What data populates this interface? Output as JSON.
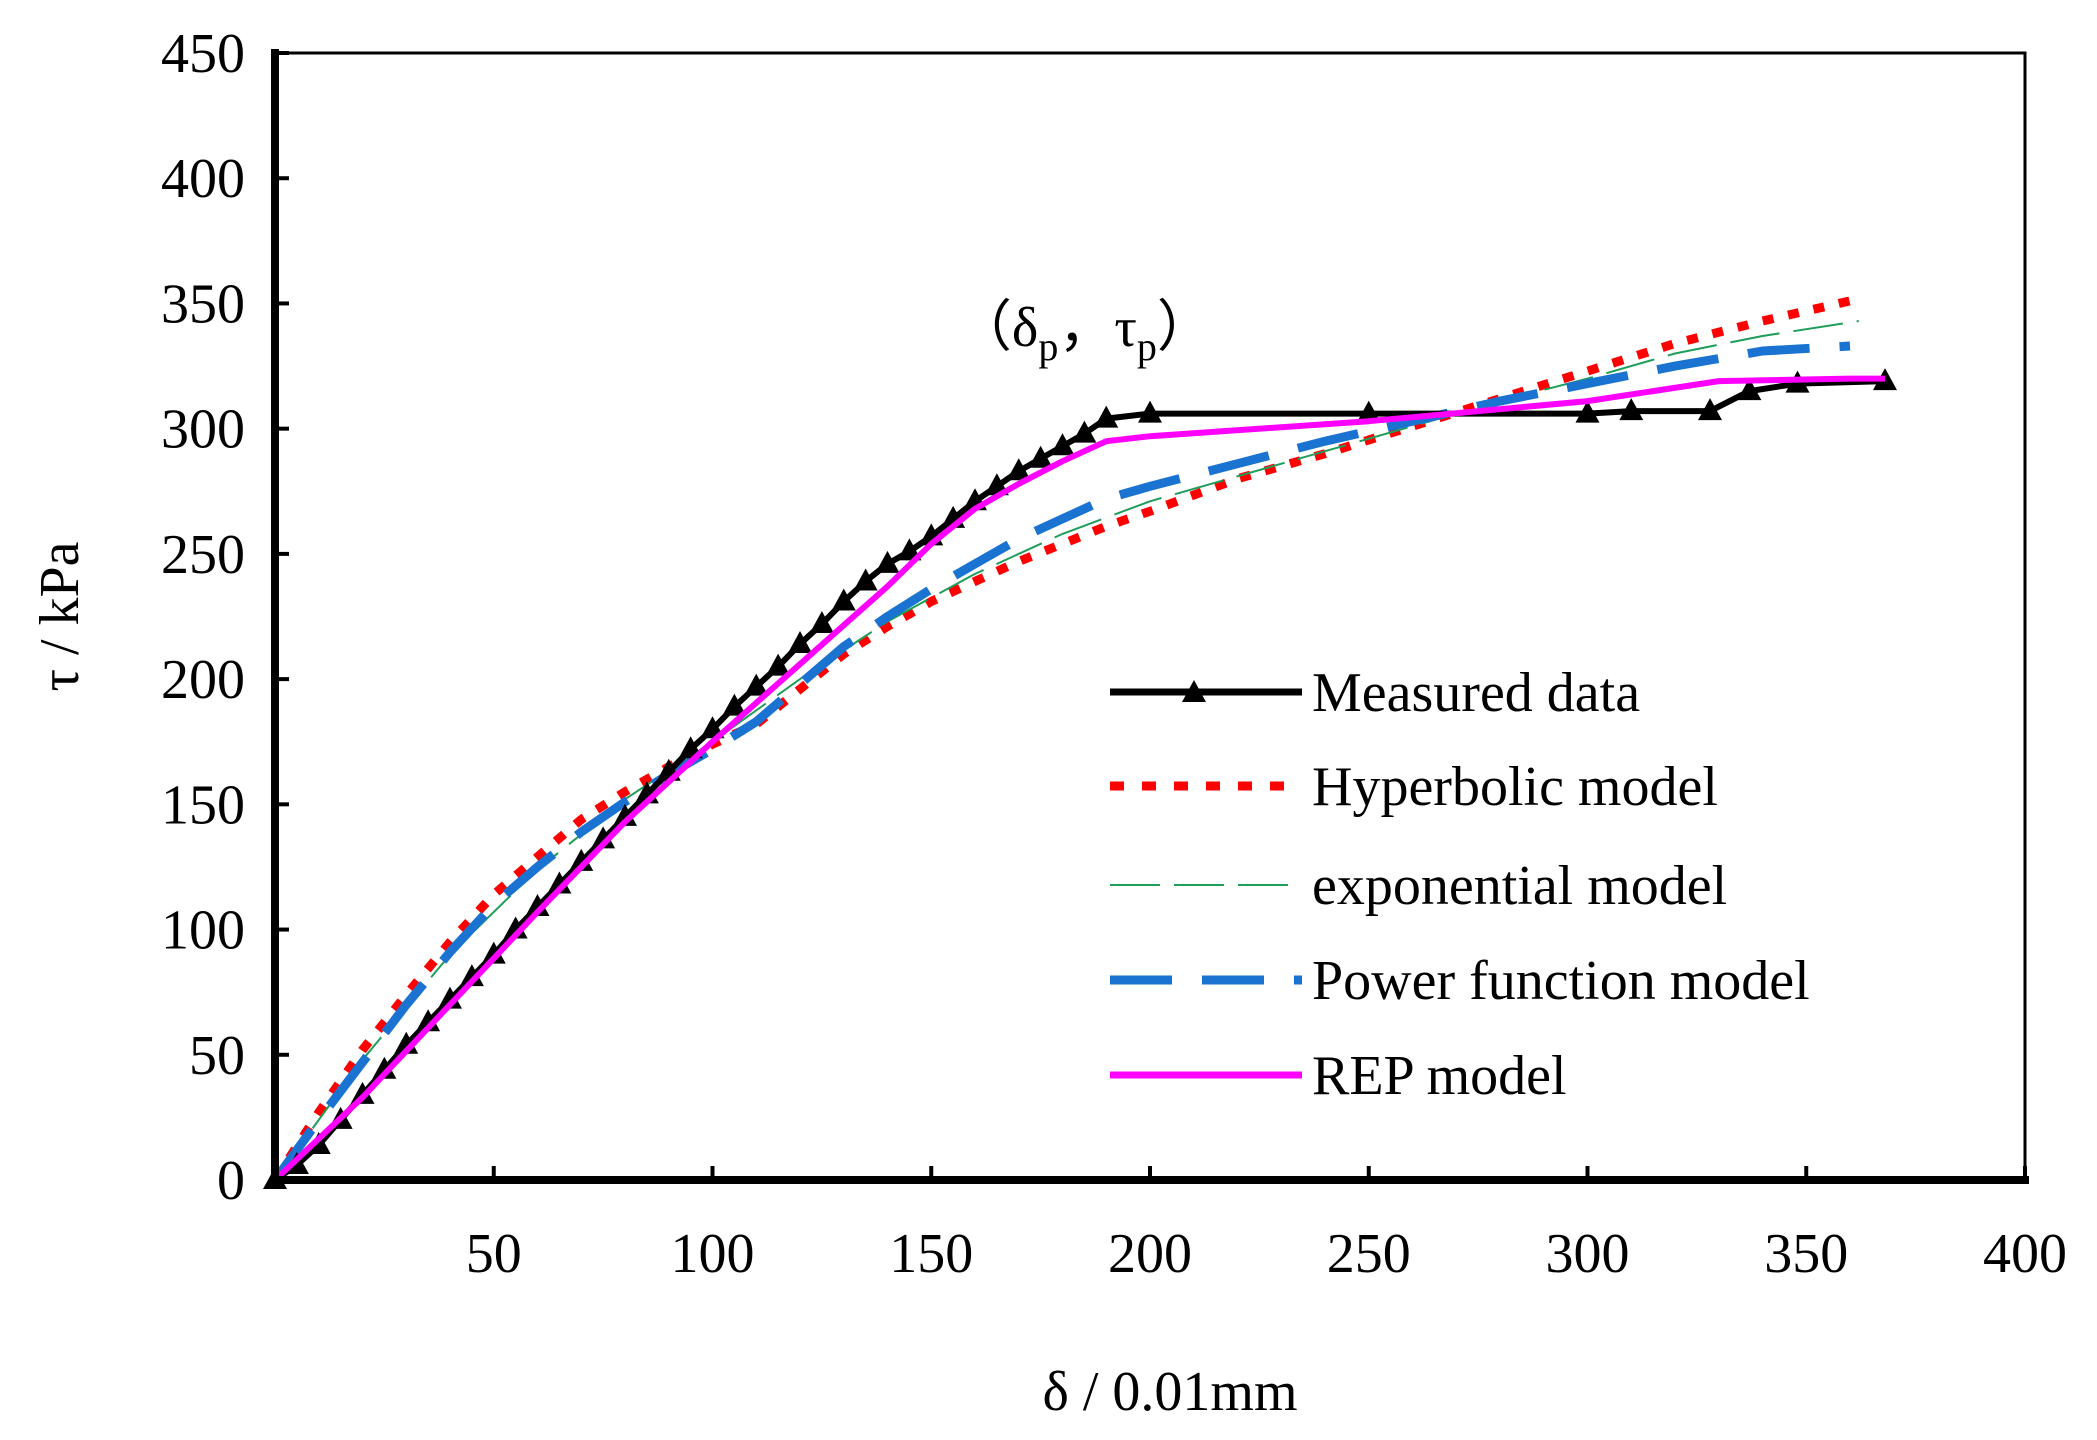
{
  "chart_data": {
    "type": "line",
    "title": "",
    "xlabel": "δ / 0.01mm",
    "ylabel": "τ / kPa",
    "xlim": [
      0,
      400
    ],
    "ylim": [
      0,
      450
    ],
    "x_ticks": [
      50,
      100,
      150,
      200,
      250,
      300,
      350,
      400
    ],
    "x_tick_labels": [
      "50",
      "100",
      "150",
      "200",
      "250",
      "300",
      "350",
      "400"
    ],
    "y_ticks": [
      0,
      50,
      100,
      150,
      200,
      250,
      300,
      350,
      400,
      450
    ],
    "y_tick_labels": [
      "0",
      "50",
      "100",
      "150",
      "200",
      "250",
      "300",
      "350",
      "400",
      "450"
    ],
    "grid": false,
    "legend_position": "bottom-right",
    "annotation": {
      "open": "（δ",
      "sub1": "p",
      "mid": "，τ",
      "sub2": "p",
      "close": "）",
      "x": 185,
      "y": 333
    },
    "series": [
      {
        "name": "Measured data",
        "color": "#000000",
        "style": "solid-triangles",
        "x": [
          0,
          5,
          10,
          15,
          20,
          25,
          30,
          35,
          40,
          45,
          50,
          55,
          60,
          65,
          70,
          75,
          80,
          85,
          90,
          95,
          100,
          105,
          110,
          115,
          120,
          125,
          130,
          135,
          140,
          145,
          150,
          155,
          160,
          165,
          170,
          175,
          180,
          185,
          190,
          200,
          250,
          300,
          310,
          328,
          337,
          348,
          368
        ],
        "y": [
          0,
          6,
          14,
          24,
          34,
          44,
          54,
          63,
          72,
          81,
          90,
          100,
          109,
          118,
          127,
          136,
          145,
          154,
          163,
          172,
          180,
          189,
          197,
          205,
          214,
          222,
          231,
          239,
          246,
          251,
          257,
          264,
          271,
          277,
          283,
          288,
          293,
          298,
          304,
          306,
          306,
          306,
          307,
          307,
          315,
          318,
          319
        ]
      },
      {
        "name": "Hyperbolic model",
        "color": "#ff0000",
        "style": "dotted",
        "x": [
          0,
          10,
          20,
          30,
          40,
          50,
          60,
          70,
          80,
          90,
          100,
          110,
          120,
          130,
          140,
          150,
          160,
          170,
          180,
          190,
          200,
          220,
          240,
          260,
          280,
          300,
          320,
          340,
          360
        ],
        "y": [
          0,
          27,
          52,
          74,
          95,
          114,
          129,
          144,
          155,
          165,
          174,
          182,
          196,
          210,
          221,
          231,
          239,
          247,
          254,
          261,
          267,
          280,
          290,
          301,
          312,
          323,
          334,
          343,
          351
        ]
      },
      {
        "name": "exponential model",
        "color": "#1e9e5a",
        "style": "long-dash-thin",
        "x": [
          0,
          20,
          40,
          60,
          80,
          100,
          120,
          140,
          160,
          180,
          200,
          220,
          240,
          260,
          280,
          300,
          320,
          340,
          362
        ],
        "y": [
          0,
          48,
          90,
          124,
          152,
          175,
          200,
          223,
          242,
          258,
          271,
          281,
          291,
          301,
          311,
          320,
          330,
          337,
          343
        ]
      },
      {
        "name": "Power function model",
        "color": "#1a73d1",
        "style": "long-dash-thick",
        "x": [
          0,
          10,
          20,
          30,
          40,
          50,
          60,
          70,
          80,
          90,
          100,
          110,
          120,
          130,
          140,
          150,
          160,
          170,
          180,
          190,
          200,
          220,
          240,
          260,
          280,
          300,
          320,
          340,
          360
        ],
        "y": [
          0,
          24,
          47,
          70,
          91,
          110,
          125,
          139,
          151,
          162,
          172,
          183,
          198,
          213,
          225,
          236,
          246,
          256,
          264,
          272,
          277,
          286,
          295,
          303,
          311,
          318,
          325,
          331,
          333
        ]
      },
      {
        "name": "REP model",
        "color": "#ff00ff",
        "style": "solid",
        "x": [
          0,
          20,
          40,
          60,
          80,
          100,
          120,
          140,
          150,
          160,
          170,
          180,
          190,
          200,
          250,
          300,
          330,
          360,
          368
        ],
        "y": [
          0,
          33,
          70,
          107,
          143,
          175,
          206,
          237,
          254,
          268,
          278,
          287,
          295,
          297,
          303,
          311,
          319,
          320,
          320
        ]
      }
    ]
  }
}
